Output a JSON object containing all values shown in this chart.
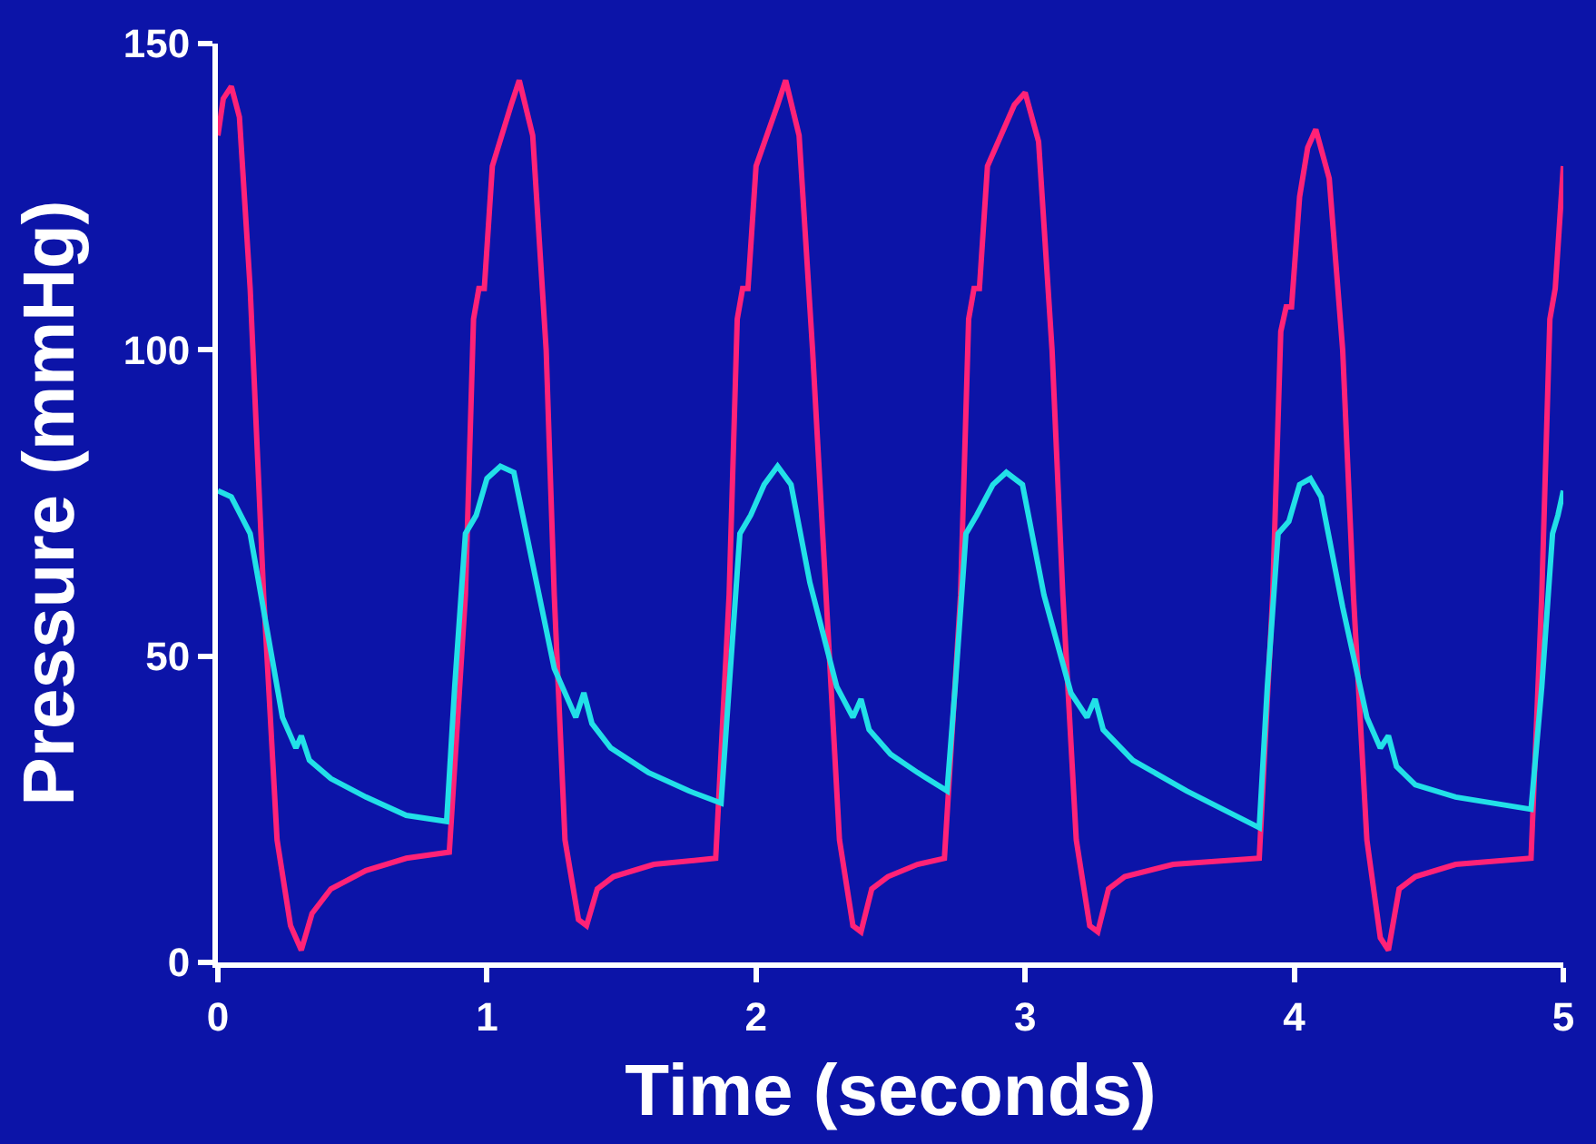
{
  "chart_data": {
    "type": "line",
    "xlabel": "Time (seconds)",
    "ylabel": "Pressure (mmHg)",
    "xlim": [
      0,
      5
    ],
    "xticks": [
      0,
      1,
      2,
      3,
      4,
      5
    ],
    "ylim": [
      0,
      150
    ],
    "yticks": [
      0,
      50,
      100,
      150
    ],
    "grid": false,
    "marker": "none",
    "line_style": "solid",
    "series": [
      {
        "color": "#ff2277",
        "x": [
          0,
          0.02,
          0.05,
          0.08,
          0.12,
          0.17,
          0.22,
          0.27,
          0.31,
          0.35,
          0.42,
          0.55,
          0.7,
          0.86,
          0.92,
          0.95,
          0.97,
          0.99,
          1.02,
          1.09,
          1.12,
          1.17,
          1.22,
          1.25,
          1.29,
          1.34,
          1.37,
          1.41,
          1.47,
          1.62,
          1.85,
          1.9,
          1.93,
          1.95,
          1.97,
          2.0,
          2.08,
          2.11,
          2.16,
          2.21,
          2.26,
          2.31,
          2.36,
          2.39,
          2.43,
          2.49,
          2.6,
          2.7,
          2.76,
          2.79,
          2.81,
          2.83,
          2.86,
          2.96,
          3.0,
          3.05,
          3.1,
          3.14,
          3.19,
          3.24,
          3.27,
          3.31,
          3.37,
          3.55,
          3.87,
          3.92,
          3.95,
          3.97,
          3.99,
          4.02,
          4.05,
          4.08,
          4.13,
          4.18,
          4.22,
          4.27,
          4.32,
          4.35,
          4.39,
          4.45,
          4.6,
          4.88,
          4.92,
          4.95,
          4.97,
          5.0
        ],
        "values": [
          135,
          141,
          143,
          138,
          110,
          60,
          20,
          6,
          2,
          8,
          12,
          15,
          17,
          18,
          60,
          105,
          110,
          110,
          130,
          140,
          144,
          135,
          100,
          60,
          20,
          7,
          6,
          12,
          14,
          16,
          17,
          60,
          105,
          110,
          110,
          130,
          140,
          144,
          135,
          100,
          60,
          20,
          6,
          5,
          12,
          14,
          16,
          17,
          60,
          105,
          110,
          110,
          130,
          140,
          142,
          134,
          100,
          60,
          20,
          6,
          5,
          12,
          14,
          16,
          17,
          60,
          103,
          107,
          107,
          125,
          133,
          136,
          128,
          100,
          60,
          20,
          4,
          2,
          12,
          14,
          16,
          17,
          60,
          105,
          110,
          130
        ]
      },
      {
        "color": "#22e0e8",
        "x": [
          0,
          0.05,
          0.12,
          0.18,
          0.24,
          0.29,
          0.31,
          0.34,
          0.42,
          0.55,
          0.7,
          0.85,
          0.88,
          0.92,
          0.96,
          1.0,
          1.05,
          1.1,
          1.17,
          1.25,
          1.33,
          1.36,
          1.39,
          1.46,
          1.6,
          1.75,
          1.87,
          1.9,
          1.94,
          1.98,
          2.03,
          2.08,
          2.13,
          2.2,
          2.3,
          2.36,
          2.39,
          2.42,
          2.5,
          2.6,
          2.71,
          2.74,
          2.78,
          2.82,
          2.88,
          2.93,
          2.99,
          3.07,
          3.17,
          3.23,
          3.26,
          3.29,
          3.4,
          3.6,
          3.87,
          3.9,
          3.94,
          3.98,
          4.02,
          4.06,
          4.1,
          4.18,
          4.27,
          4.32,
          4.35,
          4.38,
          4.45,
          4.6,
          4.88,
          4.92,
          4.96,
          4.98,
          5.0
        ],
        "values": [
          77,
          76,
          70,
          55,
          40,
          35,
          37,
          33,
          30,
          27,
          24,
          23,
          45,
          70,
          73,
          79,
          81,
          80,
          65,
          48,
          40,
          44,
          39,
          35,
          31,
          28,
          26,
          45,
          70,
          73,
          78,
          81,
          78,
          62,
          45,
          40,
          43,
          38,
          34,
          31,
          28,
          45,
          70,
          73,
          78,
          80,
          78,
          60,
          44,
          40,
          43,
          38,
          33,
          28,
          22,
          45,
          70,
          72,
          78,
          79,
          76,
          58,
          40,
          35,
          37,
          32,
          29,
          27,
          25,
          45,
          70,
          73,
          77
        ]
      }
    ]
  }
}
